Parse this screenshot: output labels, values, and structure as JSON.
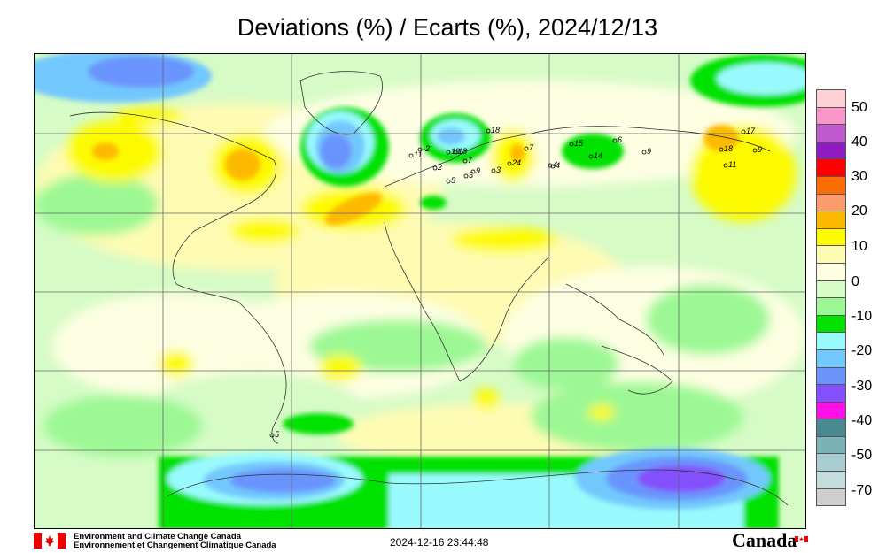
{
  "title": "Deviations (%) / Ecarts (%), 2024/12/13",
  "legend": {
    "labels": [
      "50",
      "40",
      "30",
      "20",
      "10",
      "0",
      "-10",
      "-20",
      "-30",
      "-40",
      "-50",
      "-70"
    ],
    "colors": [
      "#fdd0d4",
      "#f897c8",
      "#c15ad1",
      "#8f1cc1",
      "#fd0000",
      "#fd6d05",
      "#fd9b6d",
      "#fdb900",
      "#fdfa02",
      "#fefbb3",
      "#fdfee2",
      "#d6fbc6",
      "#9cf894",
      "#00e200",
      "#99fafd",
      "#72c8fd",
      "#6b94fd",
      "#8450fd",
      "#ff10e8",
      "#4a898f",
      "#7ab2b6",
      "#a9cdd0",
      "#c4dcdc",
      "#cdcfcf"
    ]
  },
  "map": {
    "station_values": [
      "-2",
      "7",
      "11",
      "18",
      "19",
      "18",
      "2",
      "4",
      "5",
      "9",
      "5",
      "24",
      "7",
      "3",
      "4",
      "15",
      "14",
      "6",
      "9",
      "18",
      "17",
      "11",
      "9",
      "5"
    ]
  },
  "footer": {
    "org_en": "Environment and Climate Change Canada",
    "org_fr": "Environnement et Changement Climatique Canada",
    "timestamp": "2024-12-16 23:44:48",
    "wordmark": "Canada"
  }
}
